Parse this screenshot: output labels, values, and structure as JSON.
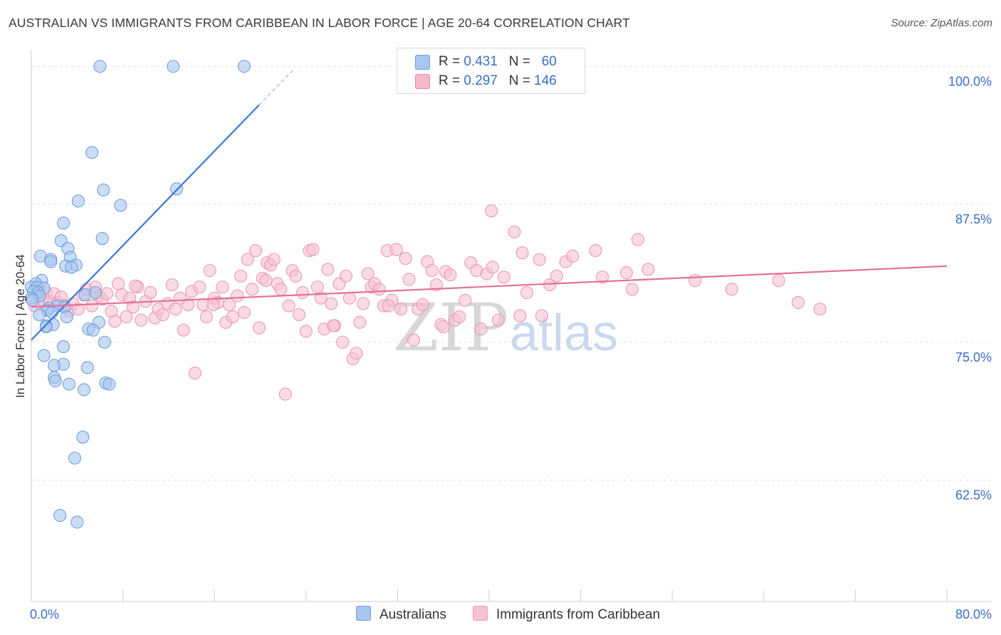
{
  "title": "AUSTRALIAN VS IMMIGRANTS FROM CARIBBEAN IN LABOR FORCE | AGE 20-64 CORRELATION CHART",
  "source": "Source: ZipAtlas.com",
  "watermark": {
    "zip": "ZIP",
    "atlas": "atlas"
  },
  "legend": {
    "rows": [
      {
        "r_label": "R =",
        "r_value": "0.431",
        "n_label": "N =",
        "n_value": "60",
        "color": "#a9c6ef",
        "border": "#6f9fdf"
      },
      {
        "r_label": "R =",
        "r_value": "0.297",
        "n_label": "N =",
        "n_value": "146",
        "color": "#f7b8cc",
        "border": "#e88aa8"
      }
    ]
  },
  "bottom_legend": {
    "series1": "Australians",
    "series2": "Immigrants from Caribbean"
  },
  "colors": {
    "blue_fill": "#a9c6ef",
    "blue_stroke": "#6f9fdf",
    "blue_line": "#3a78d6",
    "pink_fill": "#f7c3d3",
    "pink_stroke": "#ec98b3",
    "pink_line": "#e46f9a",
    "tick_text": "#3a6fc4"
  },
  "chart_data": {
    "type": "scatter",
    "title": "AUSTRALIAN VS IMMIGRANTS FROM CARIBBEAN IN LABOR FORCE | AGE 20-64 CORRELATION CHART",
    "xlabel": "",
    "ylabel": "In Labor Force | Age 20-64",
    "xlim": [
      0,
      80
    ],
    "ylim": [
      51.5,
      101.5
    ],
    "x_tick_labels": [
      "0.0%",
      "80.0%"
    ],
    "y_ticks": [
      62.5,
      75.0,
      87.5,
      100.0
    ],
    "y_tick_labels": [
      "62.5%",
      "75.0%",
      "87.5%",
      "100.0%"
    ],
    "grid": true,
    "legend_position": "top-center",
    "series": [
      {
        "name": "Australians",
        "R": 0.431,
        "N": 60,
        "trendline": {
          "x": [
            0.0,
            19.9
          ],
          "y": [
            75.2,
            96.5
          ],
          "dashed_extension_x": [
            19.9,
            23.0
          ],
          "dashed_extension_y": [
            96.5,
            99.8
          ]
        },
        "points": [
          [
            6.0,
            100.0
          ],
          [
            12.4,
            100.0
          ],
          [
            18.6,
            100.0
          ],
          [
            5.3,
            92.2
          ],
          [
            6.3,
            88.8
          ],
          [
            12.7,
            88.9
          ],
          [
            4.1,
            87.8
          ],
          [
            7.8,
            87.4
          ],
          [
            2.8,
            85.8
          ],
          [
            6.2,
            84.4
          ],
          [
            2.6,
            84.2
          ],
          [
            3.2,
            83.5
          ],
          [
            3.4,
            82.7
          ],
          [
            0.8,
            82.8
          ],
          [
            1.7,
            82.5
          ],
          [
            1.7,
            82.3
          ],
          [
            3.9,
            82.0
          ],
          [
            3.0,
            81.9
          ],
          [
            3.5,
            81.8
          ],
          [
            0.9,
            80.6
          ],
          [
            0.4,
            80.3
          ],
          [
            0.0,
            80.0
          ],
          [
            0.5,
            80.0
          ],
          [
            1.1,
            79.9
          ],
          [
            0.2,
            79.6
          ],
          [
            0.6,
            79.5
          ],
          [
            0.7,
            79.2
          ],
          [
            0.0,
            79.0
          ],
          [
            0.1,
            78.8
          ],
          [
            2.3,
            78.3
          ],
          [
            2.9,
            78.2
          ],
          [
            1.5,
            78.1
          ],
          [
            1.4,
            77.9
          ],
          [
            1.8,
            77.7
          ],
          [
            0.7,
            77.5
          ],
          [
            3.1,
            77.3
          ],
          [
            5.9,
            76.8
          ],
          [
            1.9,
            76.6
          ],
          [
            1.3,
            76.5
          ],
          [
            1.3,
            76.4
          ],
          [
            5.0,
            76.2
          ],
          [
            5.4,
            76.1
          ],
          [
            4.7,
            79.3
          ],
          [
            5.6,
            79.5
          ],
          [
            6.4,
            75.0
          ],
          [
            2.8,
            74.6
          ],
          [
            1.1,
            73.8
          ],
          [
            2.8,
            73.0
          ],
          [
            2.0,
            72.9
          ],
          [
            4.9,
            72.7
          ],
          [
            2.0,
            71.8
          ],
          [
            2.1,
            71.5
          ],
          [
            3.3,
            71.2
          ],
          [
            6.5,
            71.3
          ],
          [
            6.8,
            71.2
          ],
          [
            4.6,
            70.7
          ],
          [
            4.5,
            66.4
          ],
          [
            3.8,
            64.5
          ],
          [
            2.5,
            59.3
          ],
          [
            4.0,
            58.7
          ]
        ]
      },
      {
        "name": "Immigrants from Caribbean",
        "R": 0.297,
        "N": 146,
        "trendline": {
          "x": [
            0.0,
            80.0
          ],
          "y": [
            78.2,
            81.9
          ]
        },
        "points": [
          [
            0.3,
            78.3
          ],
          [
            0.5,
            79.6
          ],
          [
            0.8,
            79.2
          ],
          [
            1.0,
            78.8
          ],
          [
            1.3,
            79.5
          ],
          [
            1.6,
            78.7
          ],
          [
            2.0,
            79.4
          ],
          [
            2.3,
            78.6
          ],
          [
            2.6,
            79.1
          ],
          [
            2.9,
            78.3
          ],
          [
            3.3,
            77.8
          ],
          [
            3.6,
            78.5
          ],
          [
            4.1,
            78.0
          ],
          [
            4.5,
            79.3
          ],
          [
            4.8,
            79.8
          ],
          [
            5.3,
            78.3
          ],
          [
            5.6,
            80.0
          ],
          [
            5.9,
            79.2
          ],
          [
            6.2,
            78.9
          ],
          [
            6.6,
            79.4
          ],
          [
            7.0,
            77.8
          ],
          [
            7.3,
            76.9
          ],
          [
            7.6,
            80.3
          ],
          [
            7.9,
            79.3
          ],
          [
            8.3,
            77.3
          ],
          [
            8.6,
            79.0
          ],
          [
            8.9,
            78.2
          ],
          [
            9.3,
            80.0
          ],
          [
            9.6,
            77.0
          ],
          [
            10.0,
            78.7
          ],
          [
            10.4,
            79.5
          ],
          [
            10.8,
            77.2
          ],
          [
            11.1,
            78.0
          ],
          [
            11.5,
            77.5
          ],
          [
            11.9,
            78.5
          ],
          [
            12.3,
            80.2
          ],
          [
            12.6,
            78.0
          ],
          [
            13.0,
            79.0
          ],
          [
            13.3,
            76.1
          ],
          [
            13.7,
            78.4
          ],
          [
            14.0,
            79.6
          ],
          [
            14.3,
            72.2
          ],
          [
            14.7,
            80.0
          ],
          [
            15.0,
            78.4
          ],
          [
            15.3,
            77.3
          ],
          [
            15.6,
            81.5
          ],
          [
            16.0,
            79.0
          ],
          [
            16.3,
            78.6
          ],
          [
            16.7,
            80.0
          ],
          [
            17.0,
            76.8
          ],
          [
            17.3,
            78.4
          ],
          [
            17.6,
            77.3
          ],
          [
            18.0,
            79.2
          ],
          [
            18.3,
            81.0
          ],
          [
            18.6,
            77.7
          ],
          [
            18.9,
            82.5
          ],
          [
            19.3,
            79.8
          ],
          [
            19.6,
            83.3
          ],
          [
            19.9,
            76.3
          ],
          [
            20.2,
            80.8
          ],
          [
            20.6,
            82.2
          ],
          [
            20.9,
            82.0
          ],
          [
            21.2,
            82.5
          ],
          [
            21.5,
            80.3
          ],
          [
            21.8,
            79.8
          ],
          [
            22.2,
            70.3
          ],
          [
            22.5,
            78.3
          ],
          [
            22.8,
            81.5
          ],
          [
            23.1,
            81.0
          ],
          [
            23.4,
            77.5
          ],
          [
            23.7,
            79.5
          ],
          [
            24.0,
            76.0
          ],
          [
            24.3,
            83.3
          ],
          [
            24.6,
            83.4
          ],
          [
            25.0,
            80.0
          ],
          [
            25.3,
            79.0
          ],
          [
            25.6,
            76.2
          ],
          [
            25.9,
            81.6
          ],
          [
            26.2,
            78.5
          ],
          [
            26.5,
            76.5
          ],
          [
            26.9,
            80.3
          ],
          [
            27.2,
            75.0
          ],
          [
            27.5,
            81.0
          ],
          [
            27.8,
            79.0
          ],
          [
            28.1,
            73.5
          ],
          [
            28.4,
            74.0
          ],
          [
            28.7,
            76.8
          ],
          [
            29.0,
            78.5
          ],
          [
            29.4,
            81.2
          ],
          [
            29.7,
            80.0
          ],
          [
            30.0,
            80.3
          ],
          [
            30.4,
            79.8
          ],
          [
            30.8,
            78.3
          ],
          [
            31.1,
            83.3
          ],
          [
            31.5,
            78.8
          ],
          [
            31.9,
            83.4
          ],
          [
            32.3,
            78.0
          ],
          [
            32.7,
            82.6
          ],
          [
            33.0,
            80.7
          ],
          [
            33.4,
            75.2
          ],
          [
            33.8,
            78.0
          ],
          [
            34.2,
            78.4
          ],
          [
            34.6,
            82.3
          ],
          [
            35.0,
            81.5
          ],
          [
            35.4,
            80.2
          ],
          [
            35.8,
            76.6
          ],
          [
            36.2,
            81.4
          ],
          [
            36.6,
            81.1
          ],
          [
            37.0,
            77.0
          ],
          [
            37.4,
            77.3
          ],
          [
            37.9,
            78.8
          ],
          [
            38.4,
            82.2
          ],
          [
            38.9,
            81.5
          ],
          [
            39.3,
            76.2
          ],
          [
            39.8,
            81.2
          ],
          [
            40.3,
            81.8
          ],
          [
            40.8,
            77.0
          ],
          [
            41.3,
            80.9
          ],
          [
            42.2,
            85.0
          ],
          [
            42.7,
            77.4
          ],
          [
            42.9,
            83.1
          ],
          [
            43.3,
            79.5
          ],
          [
            44.4,
            82.5
          ],
          [
            45.3,
            80.2
          ],
          [
            45.9,
            81.0
          ],
          [
            46.7,
            82.3
          ],
          [
            47.3,
            82.8
          ],
          [
            49.3,
            83.3
          ],
          [
            49.9,
            80.9
          ],
          [
            52.0,
            81.3
          ],
          [
            52.5,
            79.8
          ],
          [
            53.0,
            84.3
          ],
          [
            53.9,
            81.6
          ],
          [
            58.0,
            80.6
          ],
          [
            61.2,
            79.8
          ],
          [
            65.3,
            80.6
          ],
          [
            67.0,
            78.6
          ],
          [
            68.9,
            78.0
          ],
          [
            40.2,
            86.9
          ],
          [
            26.4,
            76.5
          ],
          [
            36.0,
            76.4
          ],
          [
            44.6,
            77.4
          ],
          [
            15.9,
            78.4
          ],
          [
            31.2,
            78.3
          ],
          [
            20.5,
            80.6
          ],
          [
            9.1,
            80.1
          ]
        ]
      }
    ]
  }
}
